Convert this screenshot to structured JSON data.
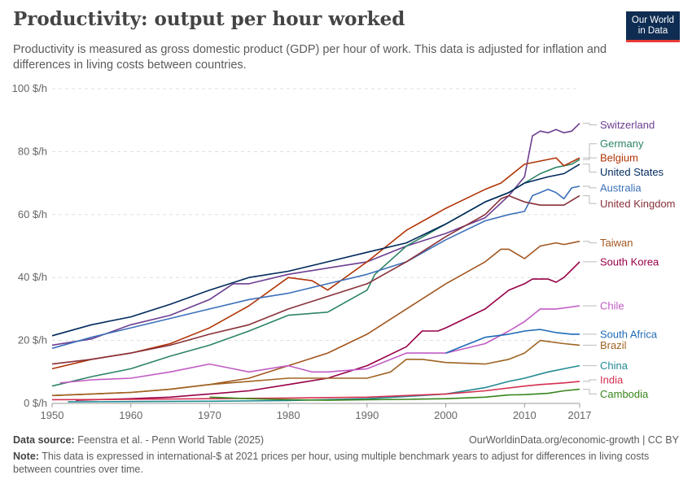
{
  "header": {
    "title": "Productivity: output per hour worked",
    "subtitle": "Productivity is measured as gross domestic product (GDP) per hour of work. This data is adjusted for inflation and differences in living costs between countries.",
    "logo_line1": "Our World",
    "logo_line2": "in Data"
  },
  "footer": {
    "source_label": "Data source:",
    "source_text": "Feenstra et al. - Penn World Table (2025)",
    "url_text": "OurWorldinData.org/economic-growth | CC BY",
    "note_label": "Note:",
    "note_text": "This data is expressed in international-$ at 2021 prices per hour, using multiple benchmark years to adjust for differences in living costs between countries over time."
  },
  "chart_data": {
    "type": "line",
    "xlim": [
      1950,
      2017
    ],
    "ylim": [
      0,
      100
    ],
    "x_ticks": [
      1950,
      1960,
      1970,
      1980,
      1990,
      2000,
      2010,
      2017
    ],
    "y_ticks": [
      0,
      20,
      40,
      60,
      80,
      100
    ],
    "y_tick_labels": [
      "0 $/h",
      "20 $/h",
      "40 $/h",
      "60 $/h",
      "80 $/h",
      "100 $/h"
    ],
    "grid": "horizontal dashed",
    "legend": "line-end labels on right",
    "series": [
      {
        "name": "Switzerland",
        "color": "#6d3e91",
        "label_y": 88.5,
        "points": [
          [
            1950,
            18.5
          ],
          [
            1955,
            20.5
          ],
          [
            1960,
            25
          ],
          [
            1965,
            28
          ],
          [
            1970,
            33
          ],
          [
            1973,
            38
          ],
          [
            1975,
            38
          ],
          [
            1980,
            41
          ],
          [
            1985,
            43
          ],
          [
            1990,
            45
          ],
          [
            1995,
            50
          ],
          [
            2000,
            54
          ],
          [
            2005,
            59
          ],
          [
            2008,
            66
          ],
          [
            2010,
            72
          ],
          [
            2011,
            85
          ],
          [
            2012,
            86.5
          ],
          [
            2013,
            86
          ],
          [
            2014,
            87
          ],
          [
            2015,
            86
          ],
          [
            2016,
            86.5
          ],
          [
            2017,
            89
          ]
        ]
      },
      {
        "name": "Germany",
        "color": "#2c8465",
        "label_y": 82.5,
        "points": [
          [
            1950,
            5.5
          ],
          [
            1955,
            8.5
          ],
          [
            1960,
            11
          ],
          [
            1965,
            15
          ],
          [
            1970,
            18.5
          ],
          [
            1975,
            23
          ],
          [
            1980,
            28
          ],
          [
            1985,
            29
          ],
          [
            1990,
            36
          ],
          [
            1991,
            41
          ],
          [
            1995,
            50
          ],
          [
            2000,
            57
          ],
          [
            2005,
            64
          ],
          [
            2008,
            67
          ],
          [
            2010,
            70
          ],
          [
            2012,
            73
          ],
          [
            2014,
            75
          ],
          [
            2016,
            76
          ],
          [
            2017,
            77.5
          ]
        ]
      },
      {
        "name": "Belgium",
        "color": "#b13507",
        "label_y": 78,
        "points": [
          [
            1950,
            11
          ],
          [
            1955,
            14
          ],
          [
            1960,
            16
          ],
          [
            1965,
            19
          ],
          [
            1970,
            24
          ],
          [
            1975,
            31
          ],
          [
            1980,
            40
          ],
          [
            1983,
            39
          ],
          [
            1985,
            36
          ],
          [
            1990,
            45
          ],
          [
            1995,
            55
          ],
          [
            2000,
            62
          ],
          [
            2005,
            68
          ],
          [
            2007,
            70
          ],
          [
            2010,
            76
          ],
          [
            2012,
            77
          ],
          [
            2014,
            78
          ],
          [
            2015,
            75.5
          ],
          [
            2017,
            78
          ]
        ]
      },
      {
        "name": "United States",
        "color": "#00295b",
        "label_y": 73.5,
        "points": [
          [
            1950,
            21.5
          ],
          [
            1955,
            25
          ],
          [
            1960,
            27.5
          ],
          [
            1965,
            31.5
          ],
          [
            1970,
            36
          ],
          [
            1975,
            40
          ],
          [
            1980,
            42
          ],
          [
            1985,
            45
          ],
          [
            1990,
            48
          ],
          [
            1995,
            51
          ],
          [
            2000,
            57
          ],
          [
            2005,
            64
          ],
          [
            2008,
            67
          ],
          [
            2010,
            70
          ],
          [
            2013,
            72
          ],
          [
            2015,
            73
          ],
          [
            2017,
            76
          ]
        ]
      },
      {
        "name": "Australia",
        "color": "#3c70ba",
        "label_y": 68.5,
        "points": [
          [
            1950,
            17.5
          ],
          [
            1955,
            21
          ],
          [
            1960,
            24
          ],
          [
            1965,
            27
          ],
          [
            1970,
            30
          ],
          [
            1975,
            33
          ],
          [
            1980,
            35
          ],
          [
            1985,
            38
          ],
          [
            1990,
            41
          ],
          [
            1995,
            45
          ],
          [
            2000,
            52
          ],
          [
            2005,
            58
          ],
          [
            2008,
            60
          ],
          [
            2010,
            61
          ],
          [
            2011,
            66
          ],
          [
            2013,
            68
          ],
          [
            2014,
            67
          ],
          [
            2015,
            65
          ],
          [
            2016,
            68.5
          ],
          [
            2017,
            69
          ]
        ]
      },
      {
        "name": "United Kingdom",
        "color": "#883039",
        "label_y": 63.5,
        "points": [
          [
            1950,
            12.5
          ],
          [
            1955,
            14
          ],
          [
            1960,
            16
          ],
          [
            1965,
            18.5
          ],
          [
            1970,
            22
          ],
          [
            1975,
            25
          ],
          [
            1980,
            30
          ],
          [
            1985,
            34
          ],
          [
            1990,
            38
          ],
          [
            1995,
            45
          ],
          [
            2000,
            53
          ],
          [
            2005,
            60
          ],
          [
            2007,
            65
          ],
          [
            2008,
            66
          ],
          [
            2010,
            64
          ],
          [
            2012,
            63
          ],
          [
            2015,
            63
          ],
          [
            2017,
            66
          ]
        ]
      },
      {
        "name": "Taiwan",
        "color": "#a2561f",
        "label_y": 51,
        "points": [
          [
            1950,
            2.5
          ],
          [
            1955,
            3
          ],
          [
            1960,
            3.5
          ],
          [
            1965,
            4.5
          ],
          [
            1970,
            6
          ],
          [
            1975,
            8
          ],
          [
            1980,
            12
          ],
          [
            1985,
            16
          ],
          [
            1990,
            22
          ],
          [
            1995,
            30
          ],
          [
            2000,
            38
          ],
          [
            2005,
            45
          ],
          [
            2007,
            49
          ],
          [
            2008,
            49
          ],
          [
            2010,
            46
          ],
          [
            2012,
            50
          ],
          [
            2014,
            51
          ],
          [
            2015,
            50.5
          ],
          [
            2017,
            51.5
          ]
        ]
      },
      {
        "name": "South Korea",
        "color": "#970046",
        "label_y": 45,
        "points": [
          [
            1953,
            1
          ],
          [
            1960,
            1.5
          ],
          [
            1965,
            2
          ],
          [
            1970,
            3
          ],
          [
            1975,
            4
          ],
          [
            1980,
            6
          ],
          [
            1985,
            8
          ],
          [
            1990,
            12
          ],
          [
            1995,
            18
          ],
          [
            1997,
            23
          ],
          [
            1999,
            23
          ],
          [
            2000,
            24
          ],
          [
            2005,
            30
          ],
          [
            2008,
            36
          ],
          [
            2010,
            38
          ],
          [
            2011,
            39.5
          ],
          [
            2013,
            39.5
          ],
          [
            2014,
            38.5
          ],
          [
            2015,
            40
          ],
          [
            2017,
            45
          ]
        ]
      },
      {
        "name": "Chile",
        "color": "#c15cc4",
        "label_y": 31,
        "points": [
          [
            1951,
            6.5
          ],
          [
            1955,
            7.5
          ],
          [
            1960,
            8
          ],
          [
            1965,
            10
          ],
          [
            1970,
            12.5
          ],
          [
            1973,
            11
          ],
          [
            1975,
            10
          ],
          [
            1980,
            12
          ],
          [
            1983,
            10
          ],
          [
            1985,
            10
          ],
          [
            1990,
            11
          ],
          [
            1995,
            16
          ],
          [
            2000,
            16
          ],
          [
            2005,
            19
          ],
          [
            2008,
            23
          ],
          [
            2010,
            26
          ],
          [
            2012,
            30
          ],
          [
            2014,
            30
          ],
          [
            2017,
            31
          ]
        ]
      },
      {
        "name": "South Africa",
        "color": "#1f6bb6",
        "label_y": 22,
        "points": [
          [
            2000,
            16
          ],
          [
            2002,
            18
          ],
          [
            2005,
            21
          ],
          [
            2008,
            22
          ],
          [
            2010,
            23
          ],
          [
            2012,
            23.5
          ],
          [
            2014,
            22.5
          ],
          [
            2016,
            22
          ],
          [
            2017,
            22
          ]
        ]
      },
      {
        "name": "Brazil",
        "color": "#9f6322",
        "label_y": 18.5,
        "points": [
          [
            1950,
            2.5
          ],
          [
            1955,
            3
          ],
          [
            1960,
            3.5
          ],
          [
            1965,
            4.5
          ],
          [
            1970,
            6
          ],
          [
            1975,
            7
          ],
          [
            1980,
            8
          ],
          [
            1985,
            8
          ],
          [
            1990,
            8
          ],
          [
            1993,
            10
          ],
          [
            1995,
            14
          ],
          [
            1997,
            14
          ],
          [
            2000,
            13
          ],
          [
            2005,
            12.5
          ],
          [
            2008,
            14
          ],
          [
            2010,
            16
          ],
          [
            2012,
            20
          ],
          [
            2015,
            19
          ],
          [
            2017,
            18.5
          ]
        ]
      },
      {
        "name": "China",
        "color": "#218a93",
        "label_y": 12,
        "points": [
          [
            1952,
            0.5
          ],
          [
            1960,
            0.6
          ],
          [
            1970,
            0.7
          ],
          [
            1980,
            0.9
          ],
          [
            1990,
            1.5
          ],
          [
            1995,
            2.2
          ],
          [
            2000,
            3
          ],
          [
            2005,
            5
          ],
          [
            2008,
            7
          ],
          [
            2010,
            8
          ],
          [
            2013,
            10
          ],
          [
            2015,
            11
          ],
          [
            2017,
            12
          ]
        ]
      },
      {
        "name": "India",
        "color": "#d53050",
        "label_y": 7.5,
        "points": [
          [
            1950,
            1.2
          ],
          [
            1960,
            1.3
          ],
          [
            1970,
            1.5
          ],
          [
            1980,
            1.7
          ],
          [
            1990,
            2
          ],
          [
            1995,
            2.5
          ],
          [
            2000,
            3
          ],
          [
            2005,
            4
          ],
          [
            2010,
            5.5
          ],
          [
            2012,
            6
          ],
          [
            2015,
            6.5
          ],
          [
            2017,
            7
          ]
        ]
      },
      {
        "name": "Cambodia",
        "color": "#38861c",
        "label_y": 3,
        "points": [
          [
            1970,
            2
          ],
          [
            1975,
            1.5
          ],
          [
            1980,
            1.2
          ],
          [
            1985,
            1
          ],
          [
            1990,
            1.2
          ],
          [
            1995,
            1.3
          ],
          [
            2000,
            1.5
          ],
          [
            2005,
            2
          ],
          [
            2008,
            2.7
          ],
          [
            2010,
            2.8
          ],
          [
            2013,
            3.2
          ],
          [
            2015,
            4
          ],
          [
            2017,
            4.5
          ]
        ]
      }
    ]
  }
}
